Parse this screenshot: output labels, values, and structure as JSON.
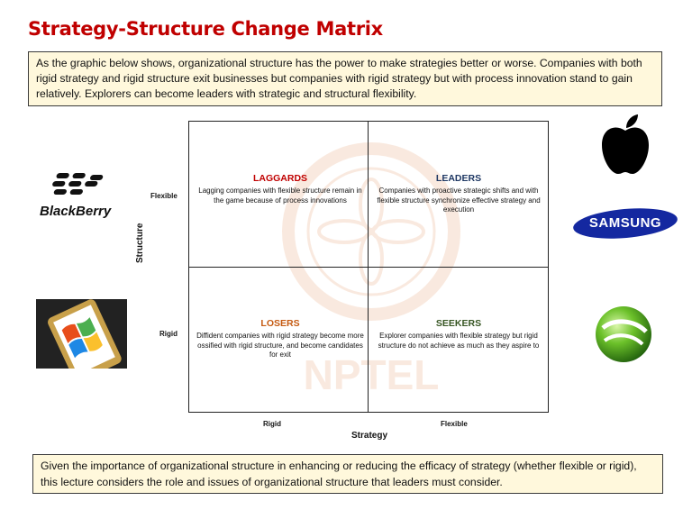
{
  "title": "Strategy-Structure Change Matrix",
  "intro": "As the graphic below shows, organizational structure has the power to make strategies better or worse. Companies with both rigid strategy and rigid structure exit businesses but companies with rigid strategy but with process innovation stand to gain relatively. Explorers can become leaders with strategic and structural flexibility.",
  "matrix": {
    "y_axis_title": "Structure",
    "x_axis_title": "Strategy",
    "y_ticks": [
      "Flexible",
      "Rigid"
    ],
    "x_ticks": [
      "Rigid",
      "Flexible"
    ],
    "quadrants": {
      "laggards": {
        "title": "LAGGARDS",
        "color": "#c00000",
        "desc": "Lagging companies with flexible structure remain in the game because of process innovations"
      },
      "leaders": {
        "title": "LEADERS",
        "color": "#1f3864",
        "desc": "Companies with proactive strategic shifts and with flexible structure synchronize effective strategy and execution"
      },
      "losers": {
        "title": "LOSERS",
        "color": "#c55a11",
        "desc": "Diffident companies with rigid strategy become more ossified with rigid structure, and become candidates for exit"
      },
      "seekers": {
        "title": "SEEKERS",
        "color": "#375623",
        "desc": "Explorer companies with flexible strategy but rigid structure do not achieve as much as they aspire to"
      }
    }
  },
  "logos": {
    "blackberry": "BlackBerry",
    "samsung": "SAMSUNG",
    "watermark": "NPTEL"
  },
  "conclusion": "Given the importance of organizational structure in enhancing or reducing the efficacy of strategy (whether flexible or rigid), this lecture considers the role and issues of organizational structure that leaders must consider."
}
